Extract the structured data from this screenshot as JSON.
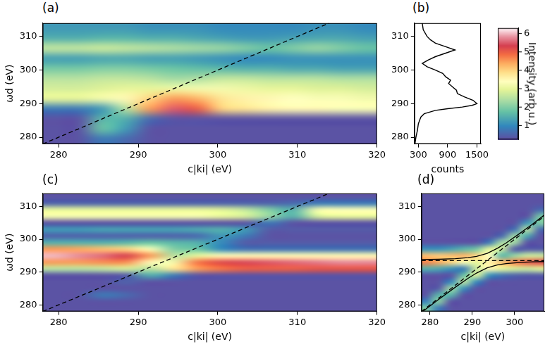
{
  "chart_data": [
    {
      "type": "heatmap",
      "panel": "(a)",
      "x_label": "c|ki| (eV)",
      "y_label": "ωd (eV)",
      "xlim": [
        278,
        320
      ],
      "xticks": [
        280,
        290,
        300,
        310,
        320
      ],
      "ylim": [
        278,
        314
      ],
      "yticks": [
        280,
        290,
        300,
        310
      ],
      "grid": false,
      "heatmap": {
        "x": [
          279.5,
          282.5,
          285.5,
          288.5,
          291.5,
          294.5,
          297.5,
          300.5,
          303.5,
          306.5,
          309.5,
          312.5,
          315.5,
          318.5
        ],
        "y": [
          279.5,
          282.5,
          285.5,
          288.5,
          291.5,
          294.5,
          297.5,
          300.5,
          303.5,
          306.5,
          309.5,
          312.5
        ],
        "z": [
          [
            0.3,
            0.3,
            0.8,
            0.6,
            0.3,
            0.3,
            0.3,
            0.3,
            0.3,
            0.3,
            0.3,
            0.3,
            0.3,
            0.3
          ],
          [
            0.3,
            0.3,
            1.8,
            1.2,
            0.3,
            0.3,
            0.3,
            0.3,
            0.3,
            0.3,
            0.3,
            0.3,
            0.3,
            0.3
          ],
          [
            0.3,
            0.3,
            1.6,
            1.5,
            0.6,
            0.3,
            0.3,
            0.3,
            0.3,
            0.3,
            0.3,
            0.3,
            0.3,
            0.3
          ],
          [
            0.8,
            0.8,
            1.2,
            2.5,
            4.5,
            5.5,
            5.0,
            4.0,
            3.8,
            3.6,
            3.5,
            3.5,
            3.3,
            3.3
          ],
          [
            3.0,
            3.0,
            3.2,
            3.5,
            4.0,
            4.5,
            4.3,
            3.8,
            3.6,
            3.5,
            3.4,
            3.3,
            3.3,
            3.2
          ],
          [
            2.8,
            2.8,
            2.9,
            3.0,
            3.0,
            3.1,
            3.2,
            3.2,
            3.1,
            3.0,
            3.0,
            2.9,
            2.9,
            2.8
          ],
          [
            2.5,
            2.5,
            2.6,
            2.6,
            2.5,
            2.3,
            2.4,
            2.6,
            2.6,
            2.5,
            2.5,
            2.5,
            2.4,
            2.4
          ],
          [
            1.9,
            1.9,
            2.0,
            2.0,
            1.9,
            1.8,
            1.7,
            1.6,
            1.5,
            1.5,
            1.4,
            1.4,
            1.3,
            1.3
          ],
          [
            1.3,
            1.3,
            1.4,
            1.4,
            1.3,
            1.3,
            1.2,
            1.1,
            1.0,
            1.0,
            1.1,
            1.1,
            1.1,
            1.1
          ],
          [
            2.6,
            2.6,
            2.7,
            2.6,
            2.5,
            2.4,
            2.3,
            2.2,
            2.0,
            1.8,
            2.0,
            2.2,
            2.0,
            1.8
          ],
          [
            1.5,
            1.5,
            1.6,
            1.6,
            1.5,
            1.5,
            1.4,
            1.3,
            1.2,
            1.2,
            1.3,
            1.4,
            1.4,
            1.3
          ],
          [
            1.2,
            1.2,
            1.2,
            1.2,
            1.1,
            1.1,
            1.1,
            1.0,
            1.0,
            1.0,
            1.0,
            1.1,
            1.1,
            1.0
          ]
        ]
      },
      "lines": [
        {
          "x": [
            278,
            314
          ],
          "y": [
            278,
            314
          ],
          "line_style": "dashed",
          "color": "#000000"
        }
      ]
    },
    {
      "type": "line",
      "panel": "(b)",
      "x_label": "counts",
      "xlim": [
        220,
        1580
      ],
      "xticks": [
        300,
        900,
        1500
      ],
      "ylim": [
        278,
        314
      ],
      "yticks": [
        280,
        290,
        300,
        310
      ],
      "grid": false,
      "color": "#000000",
      "x": [
        230,
        250,
        280,
        300,
        350,
        420,
        650,
        900,
        1200,
        1400,
        1500,
        1420,
        1250,
        1100,
        1080,
        1000,
        920,
        960,
        860,
        800,
        650,
        480,
        380,
        500,
        650,
        850,
        1050,
        850,
        650,
        550,
        480,
        400,
        380
      ],
      "y": [
        278,
        280,
        282,
        284,
        286,
        287,
        288,
        288.5,
        289,
        289.5,
        290,
        291,
        292,
        293,
        294,
        295,
        296,
        297,
        298,
        299,
        300,
        301,
        302,
        303,
        304,
        305,
        306,
        307,
        308,
        309,
        310,
        312,
        314
      ]
    },
    {
      "type": "colorbar",
      "label": "Intensity (arb.u.)",
      "range": [
        0.25,
        6.3
      ],
      "ticks": [
        1,
        2,
        3,
        4,
        5,
        6
      ]
    },
    {
      "type": "heatmap",
      "panel": "(c)",
      "x_label": "c|ki| (eV)",
      "y_label": "ωd (eV)",
      "xlim": [
        278,
        320
      ],
      "xticks": [
        280,
        290,
        300,
        310,
        320
      ],
      "ylim": [
        278,
        314
      ],
      "yticks": [
        280,
        290,
        300,
        310
      ],
      "grid": false,
      "heatmap": {
        "x": [
          279.5,
          282.5,
          285.5,
          288.5,
          291.5,
          294.5,
          297.5,
          300.5,
          303.5,
          306.5,
          309.5,
          312.5,
          315.5,
          318.5
        ],
        "y": [
          279,
          281,
          283,
          285,
          287,
          289,
          291,
          293,
          295,
          297,
          299,
          301,
          303,
          305,
          307,
          309,
          311,
          313
        ],
        "z": [
          [
            0.3,
            0.3,
            0.3,
            0.3,
            0.3,
            0.3,
            0.3,
            0.3,
            0.3,
            0.3,
            0.3,
            0.3,
            0.3,
            0.3
          ],
          [
            0.3,
            0.3,
            0.3,
            0.3,
            0.3,
            0.3,
            0.3,
            0.3,
            0.3,
            0.3,
            0.3,
            0.3,
            0.3,
            0.3
          ],
          [
            0.3,
            0.3,
            0.8,
            0.6,
            0.3,
            0.3,
            0.3,
            0.3,
            0.3,
            0.3,
            0.3,
            0.3,
            0.3,
            0.3
          ],
          [
            0.3,
            0.3,
            0.3,
            0.3,
            0.3,
            0.3,
            0.3,
            0.3,
            0.3,
            0.3,
            0.3,
            0.3,
            0.3,
            0.3
          ],
          [
            0.3,
            0.3,
            0.3,
            0.5,
            0.3,
            0.3,
            0.3,
            0.3,
            0.3,
            0.3,
            0.3,
            0.3,
            0.3,
            0.3
          ],
          [
            0.3,
            0.3,
            0.3,
            0.4,
            1.5,
            0.8,
            0.3,
            0.3,
            0.3,
            0.3,
            0.3,
            0.3,
            0.3,
            0.3
          ],
          [
            2.5,
            2.5,
            2.6,
            2.8,
            2.5,
            3.8,
            4.5,
            4.8,
            5.0,
            5.0,
            5.0,
            5.1,
            5.1,
            5.1
          ],
          [
            4.5,
            4.5,
            4.6,
            4.6,
            3.5,
            3.2,
            4.8,
            5.2,
            5.4,
            5.5,
            5.6,
            5.7,
            5.8,
            5.8
          ],
          [
            6.0,
            5.8,
            5.6,
            5.3,
            4.5,
            2.5,
            3.0,
            3.5,
            3.5,
            3.5,
            3.5,
            3.5,
            3.5,
            3.5
          ],
          [
            4.5,
            4.4,
            4.2,
            4.0,
            3.3,
            2.0,
            1.8,
            1.0,
            0.7,
            0.7,
            0.7,
            0.7,
            0.7,
            0.7
          ],
          [
            1.5,
            1.5,
            1.5,
            1.6,
            1.8,
            1.6,
            1.5,
            1.0,
            0.4,
            0.4,
            0.4,
            0.4,
            0.4,
            0.4
          ],
          [
            0.5,
            0.5,
            0.5,
            0.5,
            0.5,
            0.5,
            0.6,
            1.2,
            0.8,
            0.3,
            0.3,
            0.3,
            0.3,
            0.3
          ],
          [
            1.2,
            1.2,
            1.3,
            1.3,
            1.3,
            1.3,
            1.4,
            1.5,
            1.2,
            0.4,
            0.4,
            0.4,
            0.4,
            0.4
          ],
          [
            0.3,
            0.3,
            0.3,
            0.3,
            0.3,
            0.3,
            0.3,
            0.3,
            0.3,
            0.8,
            0.3,
            0.3,
            0.3,
            0.3
          ],
          [
            3.2,
            3.2,
            3.2,
            3.2,
            3.2,
            3.2,
            3.2,
            3.0,
            2.8,
            2.2,
            1.5,
            2.8,
            3.0,
            3.0
          ],
          [
            3.0,
            3.0,
            3.0,
            3.0,
            3.0,
            3.0,
            3.0,
            2.9,
            2.6,
            2.0,
            1.5,
            3.2,
            3.3,
            3.3
          ],
          [
            0.5,
            0.5,
            0.5,
            0.5,
            0.5,
            0.5,
            0.5,
            0.5,
            0.5,
            0.5,
            0.6,
            0.8,
            0.8,
            0.8
          ],
          [
            0.3,
            0.3,
            0.3,
            0.3,
            0.3,
            0.3,
            0.3,
            0.3,
            0.3,
            0.3,
            0.3,
            0.3,
            0.3,
            0.3
          ]
        ]
      },
      "lines": [
        {
          "x": [
            278,
            314
          ],
          "y": [
            278,
            314
          ],
          "line_style": "dashed",
          "color": "#000000"
        }
      ]
    },
    {
      "type": "heatmap",
      "panel": "(d)",
      "x_label": "c|ki| (eV)",
      "xlim": [
        278,
        307
      ],
      "xticks": [
        280,
        290,
        300
      ],
      "ylim": [
        278,
        314
      ],
      "yticks": [
        280,
        290,
        300,
        310
      ],
      "grid": false,
      "heatmap": {
        "x": [
          279,
          282,
          285,
          288,
          291,
          294,
          297,
          300,
          303,
          306
        ],
        "y": [
          279,
          281,
          283,
          285,
          287,
          289,
          291,
          293,
          295,
          297,
          299,
          301,
          303,
          305,
          307,
          309,
          311,
          313
        ],
        "z": [
          [
            2.0,
            0.8,
            0.3,
            0.3,
            0.3,
            0.3,
            0.3,
            0.3,
            0.3,
            0.3
          ],
          [
            0.9,
            2.1,
            0.3,
            0.3,
            0.3,
            0.3,
            0.3,
            0.3,
            0.3,
            0.3
          ],
          [
            0.3,
            1.6,
            1.6,
            0.3,
            0.3,
            0.3,
            0.3,
            0.3,
            0.3,
            0.3
          ],
          [
            0.3,
            0.4,
            2.3,
            1.1,
            0.3,
            0.3,
            0.3,
            0.3,
            0.3,
            0.3
          ],
          [
            0.3,
            0.3,
            1.0,
            2.6,
            1.0,
            0.3,
            0.3,
            0.3,
            0.3,
            0.3
          ],
          [
            0.3,
            0.3,
            0.3,
            1.8,
            2.9,
            1.1,
            0.7,
            0.5,
            0.4,
            0.4
          ],
          [
            1.5,
            1.4,
            1.1,
            0.8,
            2.7,
            3.5,
            3.0,
            2.8,
            2.7,
            2.9
          ],
          [
            4.7,
            4.4,
            4.0,
            3.3,
            3.0,
            3.6,
            4.2,
            4.7,
            5.0,
            5.2
          ],
          [
            4.2,
            4.1,
            4.2,
            4.3,
            4.0,
            3.4,
            1.6,
            2.2,
            2.7,
            2.7
          ],
          [
            1.1,
            1.1,
            1.3,
            1.6,
            1.9,
            3.0,
            2.7,
            0.4,
            0.4,
            0.4
          ],
          [
            0.3,
            0.3,
            0.3,
            0.3,
            0.3,
            0.8,
            2.4,
            2.3,
            0.3,
            0.3
          ],
          [
            0.3,
            0.3,
            0.3,
            0.3,
            0.3,
            0.3,
            0.6,
            2.3,
            1.4,
            0.3
          ],
          [
            0.3,
            0.3,
            0.3,
            0.3,
            0.3,
            0.3,
            0.3,
            0.7,
            2.5,
            0.6
          ],
          [
            0.3,
            0.3,
            0.3,
            0.3,
            0.3,
            0.3,
            0.3,
            0.3,
            1.2,
            2.0
          ],
          [
            0.3,
            0.3,
            0.3,
            0.3,
            0.3,
            0.3,
            0.3,
            0.3,
            0.3,
            1.9
          ],
          [
            0.3,
            0.3,
            0.3,
            0.3,
            0.3,
            0.3,
            0.3,
            0.3,
            0.3,
            0.6
          ],
          [
            0.3,
            0.3,
            0.3,
            0.3,
            0.3,
            0.3,
            0.3,
            0.3,
            0.3,
            0.3
          ],
          [
            0.3,
            0.3,
            0.3,
            0.3,
            0.3,
            0.3,
            0.3,
            0.3,
            0.3,
            0.3
          ]
        ]
      },
      "lines": [
        {
          "x": [
            278,
            307
          ],
          "y": [
            278,
            307
          ],
          "line_style": "dashed",
          "color": "#000000"
        },
        {
          "x": [
            278,
            307
          ],
          "y": [
            293.5,
            293.5
          ],
          "line_style": "dashed",
          "color": "#000000"
        },
        {
          "x": [
            278,
            282,
            286,
            289,
            291,
            293.5,
            296,
            298,
            301,
            304,
            307
          ],
          "y": [
            293.8,
            293.9,
            294.1,
            294.4,
            294.8,
            295.7,
            297.3,
            298.9,
            301.6,
            304.4,
            307.4
          ],
          "line_style": "solid",
          "color": "#000000"
        },
        {
          "x": [
            278,
            282,
            286,
            289,
            291,
            293.5,
            296,
            298,
            301,
            304,
            307
          ],
          "y": [
            277.7,
            281.6,
            285.4,
            288.1,
            289.7,
            291.3,
            292.2,
            292.6,
            292.9,
            293.1,
            293.2
          ],
          "line_style": "solid",
          "color": "#000000"
        }
      ]
    }
  ]
}
